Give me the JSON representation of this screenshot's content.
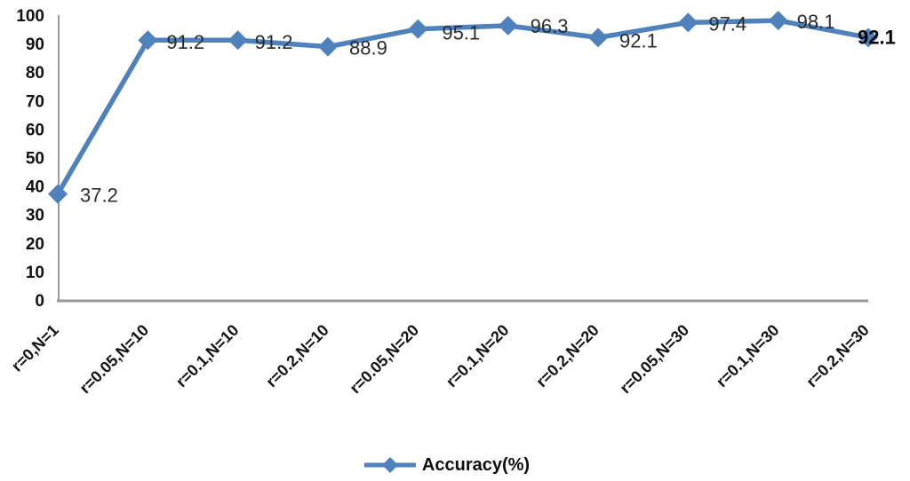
{
  "chart_data": {
    "type": "line",
    "title": "",
    "xlabel": "",
    "ylabel": "",
    "categories": [
      "r=0,N=1",
      "r=0.05,N=10",
      "r=0.1,N=10",
      "r=0.2,N=10",
      "r=0.05,N=20",
      "r=0.1,N=20",
      "r=0.2,N=20",
      "r=0.05,N=30",
      "r=0.1,N=30",
      "r=0.2,N=30"
    ],
    "series": [
      {
        "name": "Accuracy(%)",
        "values": [
          37.2,
          91.2,
          91.2,
          88.9,
          95.1,
          96.3,
          92.1,
          97.4,
          98.1,
          92.1
        ]
      }
    ],
    "data_labels": [
      "37.2",
      "91.2",
      "91.2",
      "88.9",
      "95.1",
      "96.3",
      "92.1",
      "97.4",
      "98.1",
      "92.1"
    ],
    "ylim": [
      0,
      100
    ],
    "yticks": [
      0,
      10,
      20,
      30,
      40,
      50,
      60,
      70,
      80,
      90,
      100
    ],
    "grid": false,
    "legend_position": "bottom-center",
    "legend_label": "Accuracy(%)",
    "marker": "diamond",
    "colors": {
      "line": "#4f81bd",
      "axis": "#9a9a9a",
      "tick_text": "#111111",
      "data_label": "#2b2b2b",
      "data_label_last": "#000000"
    },
    "label_layout": {
      "dx": [
        25,
        21,
        19,
        24,
        27,
        25,
        24,
        23,
        21,
        -12
      ],
      "dy": [
        9,
        10,
        10,
        9,
        12,
        8,
        11,
        9,
        9,
        7
      ],
      "bold_last": true
    }
  }
}
